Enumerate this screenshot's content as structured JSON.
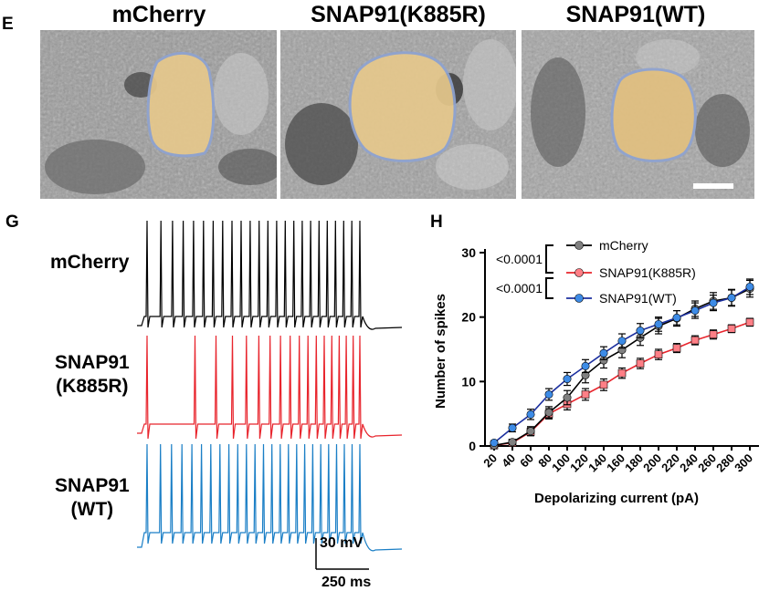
{
  "panels": {
    "e": {
      "letter": "E",
      "images": [
        {
          "title": "mCherry"
        },
        {
          "title": "SNAP91(K885R)"
        },
        {
          "title": "SNAP91(WT)"
        }
      ]
    },
    "g": {
      "letter": "G",
      "traces": [
        {
          "label_line1": "mCherry",
          "label_line2": "",
          "color": "#000000",
          "spike_count": 24
        },
        {
          "label_line1": "SNAP91",
          "label_line2": "(K885R)",
          "color": "#e8242c",
          "spike_count": 18
        },
        {
          "label_line1": "SNAP91",
          "label_line2": "(WT)",
          "color": "#1b7fc6",
          "spike_count": 25
        }
      ],
      "scale_voltage": "30 mV",
      "scale_time": "250 ms"
    },
    "h": {
      "letter": "H"
    }
  },
  "chart_data": {
    "type": "line",
    "xlabel": "Depolarizing current (pA)",
    "ylabel": "Number of spikes",
    "x": [
      20,
      40,
      60,
      80,
      100,
      120,
      140,
      160,
      180,
      200,
      220,
      240,
      260,
      280,
      300
    ],
    "ylim": [
      0,
      30
    ],
    "yticks": [
      0,
      10,
      20,
      30
    ],
    "series": [
      {
        "name": "mCherry",
        "color": "#808080",
        "values": [
          0.1,
          0.6,
          2.3,
          5.2,
          7.5,
          11.0,
          13.3,
          14.9,
          16.8,
          18.6,
          19.8,
          21.3,
          22.5,
          23.0,
          24.4
        ],
        "errors": [
          0.2,
          0.4,
          0.7,
          0.9,
          1.1,
          1.2,
          1.2,
          1.2,
          1.2,
          1.2,
          1.2,
          1.2,
          1.3,
          1.3,
          1.3
        ]
      },
      {
        "name": "SNAP91(K885R)",
        "color": "#ff7f86",
        "values": [
          0.1,
          0.5,
          2.2,
          5.0,
          6.5,
          8.0,
          9.5,
          11.3,
          12.8,
          14.2,
          15.2,
          16.4,
          17.3,
          18.2,
          19.2
        ],
        "errors": [
          0.2,
          0.4,
          0.6,
          0.8,
          0.9,
          0.9,
          0.9,
          0.8,
          0.8,
          0.8,
          0.7,
          0.7,
          0.7,
          0.6,
          0.6
        ]
      },
      {
        "name": "SNAP91(WT)",
        "color": "#3d8be6",
        "values": [
          0.5,
          2.8,
          4.9,
          8.0,
          10.4,
          12.4,
          14.4,
          16.3,
          17.9,
          18.9,
          19.9,
          21.0,
          22.2,
          23.0,
          24.7
        ],
        "errors": [
          0.3,
          0.6,
          0.8,
          0.9,
          1.0,
          1.0,
          1.0,
          1.1,
          1.1,
          1.1,
          1.1,
          1.2,
          1.2,
          1.2,
          1.2
        ]
      }
    ],
    "line_colors": [
      "#000000",
      "#e8242c",
      "#1b2f9f"
    ],
    "stats": [
      {
        "label": "<0.0001"
      },
      {
        "label": "<0.0001"
      }
    ]
  }
}
